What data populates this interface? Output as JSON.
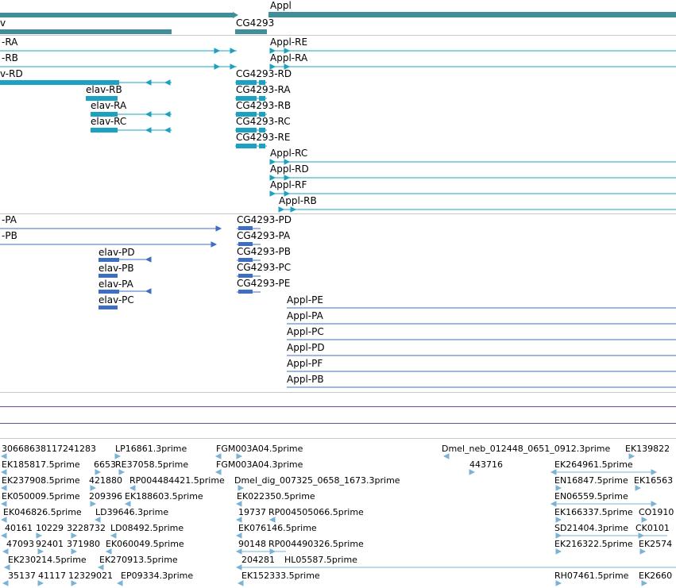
{
  "colors": {
    "gene": "#3f8e9a",
    "transcript_modern": "#1ba2c0",
    "transcript_blue": "#3c6fc4",
    "est": "#7ab3d6",
    "divider": "#c8c8c8",
    "purple_line": "#6a4f9c"
  },
  "gene_track": {
    "labels": [
      "Appl",
      "CG4293",
      "v"
    ]
  },
  "transcript_track_1": {
    "labels": [
      "-RA",
      "-RB",
      "v-RD",
      "elav-RB",
      "elav-RA",
      "elav-RC",
      "CG4293-RD",
      "CG4293-RA",
      "CG4293-RB",
      "CG4293-RC",
      "CG4293-RE",
      "Appl-RE",
      "Appl-RA",
      "Appl-RC",
      "Appl-RD",
      "Appl-RF",
      "Appl-RB"
    ]
  },
  "transcript_track_2": {
    "labels": [
      "-PA",
      "-PB",
      "elav-PD",
      "elav-PB",
      "elav-PA",
      "elav-PC",
      "CG4293-PD",
      "CG4293-PA",
      "CG4293-PB",
      "CG4293-PC",
      "CG4293-PE",
      "Appl-PE",
      "Appl-PA",
      "Appl-PC",
      "Appl-PD",
      "Appl-PF",
      "Appl-PB"
    ]
  },
  "est_track": {
    "labels": [
      "30668638117241283",
      "LP16861.3prime",
      "FGM003A04.5prime",
      "Dmel_neb_012448_0651_0912.3prime",
      "EK139822",
      "EK185817.5prime",
      "6653",
      "RE37058.5prime",
      "FGM003A04.3prime",
      "443716",
      "EK264961.5prime",
      "EK237908.5prime",
      "421880",
      "RP004484421.5prime",
      "Dmel_dig_007325_0658_1673.3prime",
      "EN16847.5prime",
      "EK16563",
      "EK050009.5prime",
      "209396",
      "EK188603.5prime",
      "EK022350.5prime",
      "EN06559.5prime",
      "EK046826.5prime",
      "LD39646.3prime",
      "19737",
      "RP004505066.5prime",
      "EK166337.5prime",
      "CO1910",
      "40161",
      "10229",
      "3228732",
      "LD08492.5prime",
      "EK076146.5prime",
      "SD21404.3prime",
      "CK0101",
      "47093",
      "92401",
      "371980",
      "EK060049.5prime",
      "90148",
      "RP004490326.5prime",
      "EK216322.5prime",
      "EK2574",
      "EK230214.5prime",
      "EK270913.5prime",
      "204281",
      "HL05587.5prime",
      "35137",
      "41117",
      "12329021",
      "EP09334.3prime",
      "EK152333.5prime",
      "RH07461.5prime",
      "EK2660"
    ]
  }
}
